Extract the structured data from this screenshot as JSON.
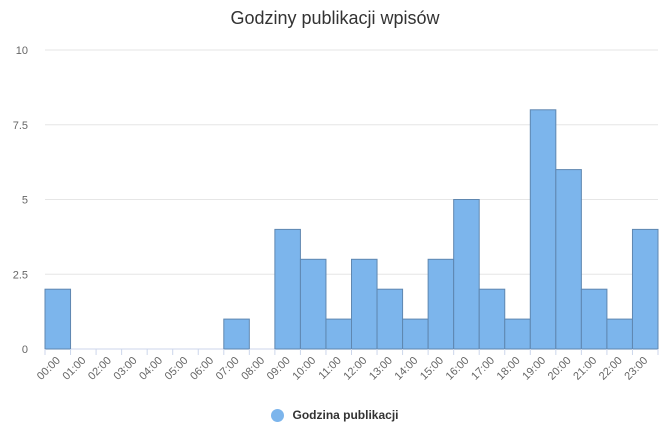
{
  "chart_data": {
    "type": "bar",
    "title": "Godziny publikacji wpisów",
    "categories": [
      "00:00",
      "01:00",
      "02:00",
      "03:00",
      "04:00",
      "05:00",
      "06:00",
      "07:00",
      "08:00",
      "09:00",
      "10:00",
      "11:00",
      "12:00",
      "13:00",
      "14:00",
      "15:00",
      "16:00",
      "17:00",
      "18:00",
      "19:00",
      "20:00",
      "21:00",
      "22:00",
      "23:00"
    ],
    "series": [
      {
        "name": "Godzina publikacji",
        "values": [
          2,
          0,
          0,
          0,
          0,
          0,
          0,
          1,
          0,
          4,
          3,
          1,
          3,
          2,
          1,
          3,
          5,
          2,
          1,
          8,
          6,
          2,
          1,
          4
        ]
      }
    ],
    "ylim": [
      0,
      10
    ],
    "yticks": [
      "0",
      "2.5",
      "5",
      "7.5",
      "10"
    ],
    "grid": true,
    "legend": "bottom-center",
    "colors": {
      "bar": "#7cb5ec",
      "bar_stroke": "#5f87b0"
    }
  }
}
